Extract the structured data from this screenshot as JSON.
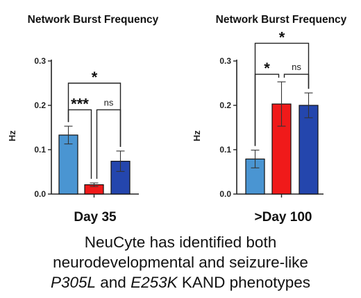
{
  "colors": {
    "light_blue": "#4a95d2",
    "red": "#f01a1a",
    "dark_blue": "#2446ad",
    "axis": "#222222"
  },
  "chart_data": [
    {
      "type": "bar",
      "title": "Network Burst Frequency",
      "ylabel": "Hz",
      "xlabel": "Day 35",
      "ylim": [
        0,
        0.3
      ],
      "yticks": [
        "0.0",
        "0.1",
        "0.2",
        "0.3"
      ],
      "bars": [
        {
          "value": 0.133,
          "error": 0.02,
          "color": "light_blue"
        },
        {
          "value": 0.021,
          "error": 0.004,
          "color": "red"
        },
        {
          "value": 0.074,
          "error": 0.023,
          "color": "dark_blue"
        }
      ],
      "comparisons": [
        {
          "from": 0,
          "to": 2,
          "label": "*",
          "level": 0.25
        },
        {
          "from": 0,
          "to": 1,
          "label": "***",
          "level": 0.19
        },
        {
          "from": 1,
          "to": 2,
          "label": "ns",
          "level": 0.19
        }
      ]
    },
    {
      "type": "bar",
      "title": "Network Burst Frequency",
      "ylabel": "Hz",
      "xlabel": ">Day 100",
      "ylim": [
        0,
        0.3
      ],
      "yticks": [
        "0.0",
        "0.1",
        "0.2",
        "0.3"
      ],
      "bars": [
        {
          "value": 0.079,
          "error": 0.02,
          "color": "light_blue"
        },
        {
          "value": 0.203,
          "error": 0.05,
          "color": "red"
        },
        {
          "value": 0.2,
          "error": 0.028,
          "color": "dark_blue"
        }
      ],
      "comparisons": [
        {
          "from": 0,
          "to": 2,
          "label": "*",
          "level": 0.34
        },
        {
          "from": 0,
          "to": 1,
          "label": "*",
          "level": 0.27
        },
        {
          "from": 1,
          "to": 2,
          "label": "ns",
          "level": 0.27
        }
      ]
    }
  ],
  "caption": {
    "line1": "NeuCyte has identified both",
    "line2": "neurodevelopmental and seizure-like",
    "gene1": "P305L",
    "and": " and ",
    "gene2": "E253K",
    "rest": " KAND phenotypes"
  }
}
